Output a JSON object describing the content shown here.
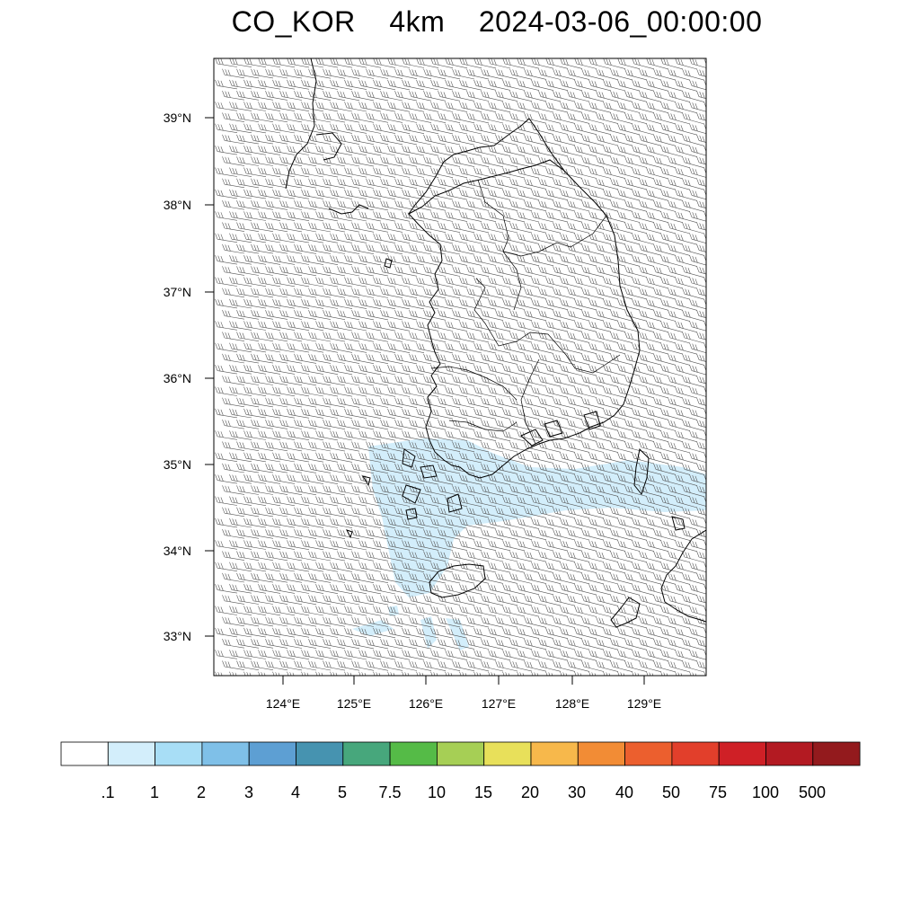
{
  "title": "CO_KOR    4km    2024-03-06_00:00:00",
  "map": {
    "lat_labels": [
      "39°N",
      "38°N",
      "37°N",
      "36°N",
      "35°N",
      "34°N",
      "33°N"
    ],
    "lat_values": [
      39,
      38,
      37,
      36,
      35,
      34,
      33
    ],
    "lon_labels": [
      "124°E",
      "125°E",
      "126°E",
      "127°E",
      "128°E",
      "129°E"
    ],
    "lon_values": [
      124,
      125,
      126,
      127,
      128,
      129
    ],
    "lat_range": [
      32.55,
      39.68
    ],
    "lon_range": [
      123.05,
      129.85
    ],
    "wind_barbs": "uniform westerly/west-south-westerly barbs across domain",
    "shading_field": "CO concentration",
    "shading_color": "#d3eefb"
  },
  "colorbar": {
    "labels": [
      ".1",
      "1",
      "2",
      "3",
      "4",
      "5",
      "7.5",
      "10",
      "15",
      "20",
      "30",
      "40",
      "50",
      "75",
      "100",
      "500"
    ],
    "colors": [
      "#ffffff",
      "#d3eefb",
      "#a8def6",
      "#7fc0e8",
      "#5d9fd3",
      "#4693b0",
      "#47a77c",
      "#55bb47",
      "#a6cf55",
      "#e8e05a",
      "#f7b84b",
      "#f28c35",
      "#ec5f2e",
      "#e23f2b",
      "#cf2026",
      "#b31a22",
      "#931a1d"
    ]
  }
}
